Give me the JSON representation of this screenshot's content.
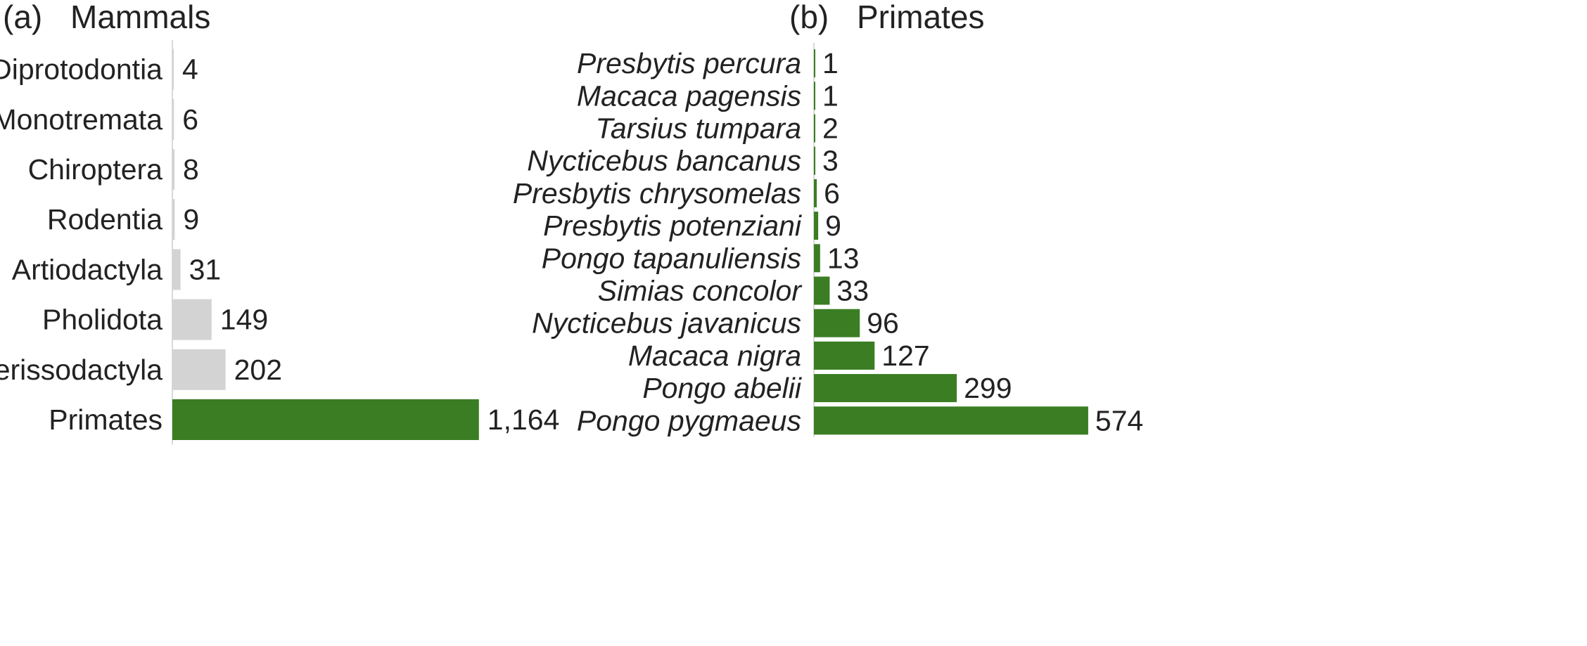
{
  "colors": {
    "highlight": "#3a7d22",
    "muted": "#d3d3d3",
    "text": "#222222",
    "axis": "#d9d9d9"
  },
  "chart_data": [
    {
      "type": "bar",
      "orientation": "horizontal",
      "panel": "(a)",
      "title": "Mammals",
      "categories": [
        "Diprotodontia",
        "Monotremata",
        "Chiroptera",
        "Rodentia",
        "Artiodactyla",
        "Pholidota",
        "Perissodactyla",
        "Primates"
      ],
      "values": [
        4,
        6,
        8,
        9,
        31,
        149,
        202,
        1164
      ],
      "value_labels": [
        "4",
        "6",
        "8",
        "9",
        "31",
        "149",
        "202",
        "1,164"
      ],
      "bar_colors": [
        "muted",
        "muted",
        "muted",
        "muted",
        "muted",
        "muted",
        "muted",
        "highlight"
      ],
      "xlim": [
        0,
        1250
      ],
      "grid": false,
      "legend": "none"
    },
    {
      "type": "bar",
      "orientation": "horizontal",
      "panel": "(b)",
      "title": "Primates",
      "categories": [
        "Presbytis percura",
        "Macaca pagensis",
        "Tarsius tumpara",
        "Nycticebus bancanus",
        "Presbytis chrysomelas",
        "Presbytis potenziani",
        "Pongo tapanuliensis",
        "Simias concolor",
        "Nycticebus javanicus",
        "Macaca nigra",
        "Pongo abelii",
        "Pongo pygmaeus"
      ],
      "values": [
        1,
        1,
        2,
        3,
        6,
        9,
        13,
        33,
        96,
        127,
        299,
        574
      ],
      "value_labels": [
        "1",
        "1",
        "2",
        "3",
        "6",
        "9",
        "13",
        "33",
        "96",
        "127",
        "299",
        "574"
      ],
      "bar_colors": [
        "highlight",
        "highlight",
        "highlight",
        "highlight",
        "highlight",
        "highlight",
        "highlight",
        "highlight",
        "highlight",
        "highlight",
        "highlight",
        "highlight"
      ],
      "category_style": "italic",
      "xlim": [
        0,
        580
      ],
      "grid": false,
      "legend": "none"
    }
  ]
}
